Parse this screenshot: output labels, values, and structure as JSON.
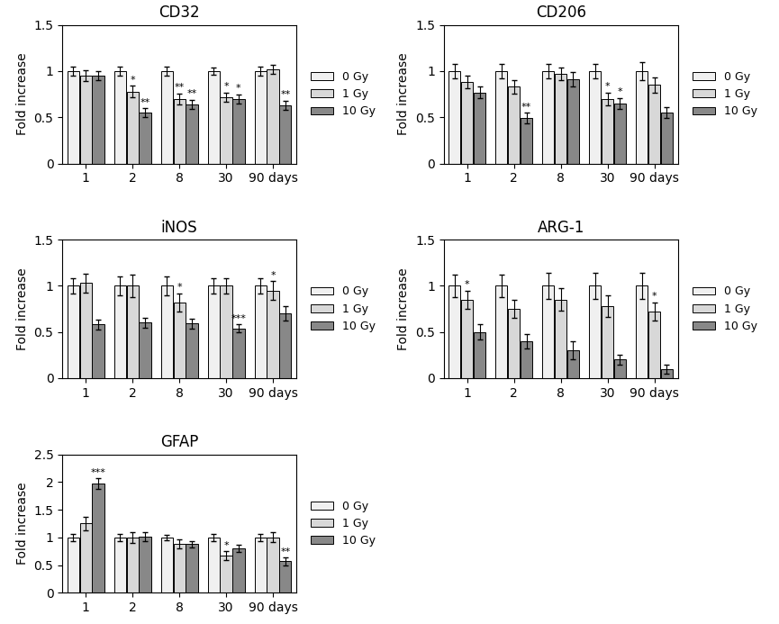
{
  "chart_data": [
    {
      "type": "bar",
      "title": "CD32",
      "y_label": "Fold increase",
      "categories": [
        "1",
        "2",
        "8",
        "30",
        "90 days"
      ],
      "ylim": [
        0,
        1.5
      ],
      "yticks": [
        0,
        0.5,
        1,
        1.5
      ],
      "legend": "right",
      "series": [
        {
          "name": "0 Gy",
          "color": "#f0f0f0",
          "values": [
            1.0,
            1.0,
            1.0,
            1.0,
            1.0
          ],
          "errors": [
            0.05,
            0.05,
            0.05,
            0.04,
            0.05
          ]
        },
        {
          "name": "1 Gy",
          "color": "#d8d8d8",
          "values": [
            0.95,
            0.78,
            0.7,
            0.72,
            1.02
          ],
          "errors": [
            0.06,
            0.06,
            0.06,
            0.05,
            0.05
          ],
          "annotations": [
            null,
            "*",
            "**",
            "*",
            null
          ]
        },
        {
          "name": "10 Gy",
          "color": "#888888",
          "values": [
            0.95,
            0.55,
            0.64,
            0.7,
            0.63
          ],
          "errors": [
            0.05,
            0.05,
            0.05,
            0.05,
            0.05
          ],
          "annotations": [
            null,
            "**",
            "**",
            "*",
            "**"
          ]
        }
      ]
    },
    {
      "type": "bar",
      "title": "CD206",
      "y_label": "Fold increase",
      "categories": [
        "1",
        "2",
        "8",
        "30",
        "90 days"
      ],
      "ylim": [
        0,
        1.5
      ],
      "yticks": [
        0,
        0.5,
        1,
        1.5
      ],
      "legend": "right",
      "series": [
        {
          "name": "0 Gy",
          "color": "#f0f0f0",
          "values": [
            1.0,
            1.0,
            1.0,
            1.0,
            1.0
          ],
          "errors": [
            0.08,
            0.08,
            0.08,
            0.08,
            0.1
          ]
        },
        {
          "name": "1 Gy",
          "color": "#d8d8d8",
          "values": [
            0.88,
            0.83,
            0.97,
            0.7,
            0.85
          ],
          "errors": [
            0.07,
            0.07,
            0.07,
            0.07,
            0.08
          ],
          "annotations": [
            null,
            null,
            null,
            "*",
            null
          ]
        },
        {
          "name": "10 Gy",
          "color": "#888888",
          "values": [
            0.77,
            0.49,
            0.91,
            0.65,
            0.55
          ],
          "errors": [
            0.06,
            0.06,
            0.08,
            0.06,
            0.06
          ],
          "annotations": [
            null,
            "**",
            null,
            "*",
            null
          ]
        }
      ]
    },
    {
      "type": "bar",
      "title": "iNOS",
      "y_label": "Fold increase",
      "categories": [
        "1",
        "2",
        "8",
        "30",
        "90 days"
      ],
      "ylim": [
        0,
        1.5
      ],
      "yticks": [
        0,
        0.5,
        1,
        1.5
      ],
      "legend": "right",
      "series": [
        {
          "name": "0 Gy",
          "color": "#f0f0f0",
          "values": [
            1.0,
            1.0,
            1.0,
            1.0,
            1.0
          ],
          "errors": [
            0.08,
            0.1,
            0.1,
            0.08,
            0.08
          ]
        },
        {
          "name": "1 Gy",
          "color": "#d8d8d8",
          "values": [
            1.03,
            1.0,
            0.82,
            1.0,
            0.95
          ],
          "errors": [
            0.1,
            0.12,
            0.1,
            0.08,
            0.1
          ],
          "annotations": [
            null,
            null,
            "*",
            null,
            "*"
          ]
        },
        {
          "name": "10 Gy",
          "color": "#888888",
          "values": [
            0.58,
            0.6,
            0.59,
            0.54,
            0.7
          ],
          "errors": [
            0.05,
            0.05,
            0.05,
            0.04,
            0.08
          ],
          "annotations": [
            null,
            null,
            null,
            "***",
            null
          ]
        }
      ]
    },
    {
      "type": "bar",
      "title": "ARG-1",
      "y_label": "Fold increase",
      "categories": [
        "1",
        "2",
        "8",
        "30",
        "90 days"
      ],
      "ylim": [
        0,
        1.5
      ],
      "yticks": [
        0,
        0.5,
        1,
        1.5
      ],
      "legend": "right",
      "series": [
        {
          "name": "0 Gy",
          "color": "#f0f0f0",
          "values": [
            1.0,
            1.0,
            1.0,
            1.0,
            1.0
          ],
          "errors": [
            0.12,
            0.12,
            0.14,
            0.14,
            0.14
          ]
        },
        {
          "name": "1 Gy",
          "color": "#d8d8d8",
          "values": [
            0.85,
            0.75,
            0.85,
            0.78,
            0.72
          ],
          "errors": [
            0.1,
            0.1,
            0.12,
            0.12,
            0.1
          ],
          "annotations": [
            "*",
            null,
            null,
            null,
            "*"
          ]
        },
        {
          "name": "10 Gy",
          "color": "#888888",
          "values": [
            0.5,
            0.4,
            0.3,
            0.2,
            0.1
          ],
          "errors": [
            0.08,
            0.08,
            0.1,
            0.05,
            0.05
          ]
        }
      ]
    },
    {
      "type": "bar",
      "title": "GFAP",
      "y_label": "Fold increase",
      "categories": [
        "1",
        "2",
        "8",
        "30",
        "90 days"
      ],
      "ylim": [
        0,
        2.5
      ],
      "yticks": [
        0,
        0.5,
        1,
        1.5,
        2,
        2.5
      ],
      "legend": "right",
      "series": [
        {
          "name": "0 Gy",
          "color": "#f0f0f0",
          "values": [
            1.0,
            1.0,
            1.0,
            1.0,
            1.0
          ],
          "errors": [
            0.07,
            0.06,
            0.05,
            0.07,
            0.06
          ]
        },
        {
          "name": "1 Gy",
          "color": "#d8d8d8",
          "values": [
            1.25,
            1.0,
            0.88,
            0.67,
            1.0
          ],
          "errors": [
            0.12,
            0.1,
            0.08,
            0.08,
            0.09
          ],
          "annotations": [
            null,
            null,
            null,
            "*",
            null
          ]
        },
        {
          "name": "10 Gy",
          "color": "#888888",
          "values": [
            1.97,
            1.02,
            0.88,
            0.8,
            0.57
          ],
          "errors": [
            0.1,
            0.08,
            0.06,
            0.06,
            0.07
          ],
          "annotations": [
            "***",
            null,
            null,
            null,
            "**"
          ]
        }
      ]
    }
  ]
}
